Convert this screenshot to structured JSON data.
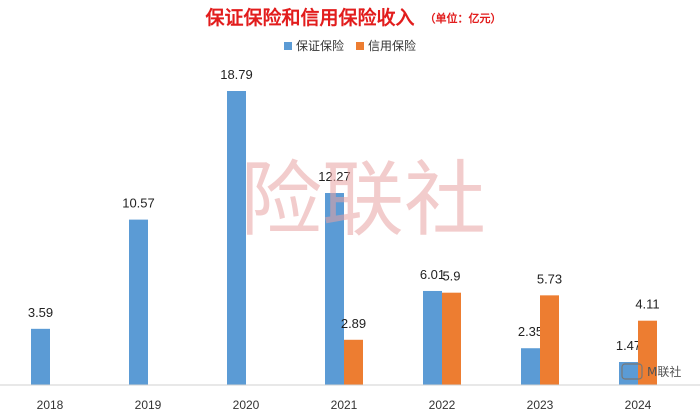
{
  "chart_data": {
    "type": "bar",
    "title": "保证保险和信用保险收入",
    "unit": "（单位：亿元）",
    "categories": [
      "2018",
      "2019",
      "2020",
      "2021",
      "2022",
      "2023",
      "2024"
    ],
    "series": [
      {
        "name": "保证保险",
        "color": "#5b9bd5",
        "values": [
          3.59,
          10.57,
          18.79,
          12.27,
          6.01,
          2.35,
          1.47
        ]
      },
      {
        "name": "信用保险",
        "color": "#ed7d31",
        "values": [
          null,
          null,
          null,
          2.89,
          5.9,
          5.73,
          4.11
        ]
      }
    ],
    "data_labels": [
      [
        "3.59",
        "10.57",
        "18.79",
        "12.27",
        "6.01",
        "2.35",
        "1.47"
      ],
      [
        null,
        null,
        null,
        "2.89",
        "5.9",
        "5.73",
        "4.11"
      ]
    ],
    "ylim": [
      0,
      19.5
    ],
    "grid": false,
    "legend_position": "top-center"
  },
  "watermark": "险联社",
  "corner_logo": "M联社"
}
